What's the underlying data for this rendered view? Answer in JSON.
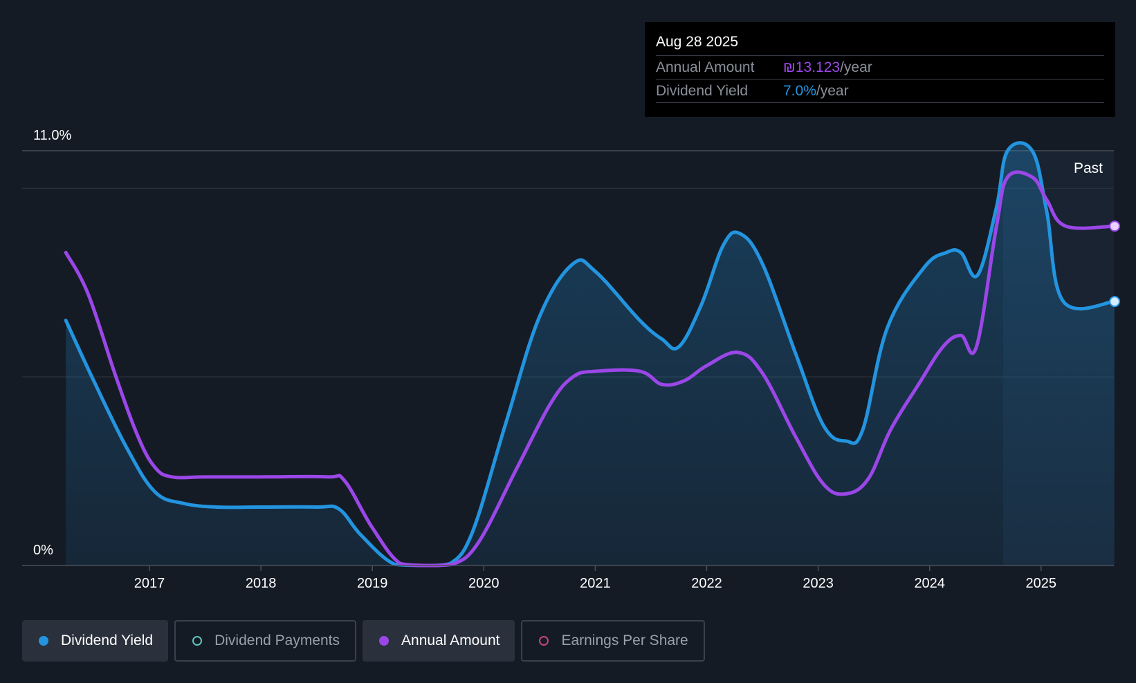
{
  "colors": {
    "dividend_yield": "#2394df",
    "annual_amount": "#9b47e8",
    "dividend_payments": "#5ec4c0",
    "earnings_per_share": "#c2477e"
  },
  "tooltip": {
    "date": "Aug 28 2025",
    "rows": [
      {
        "label": "Annual Amount",
        "value": "₪13.123",
        "unit": "/year"
      },
      {
        "label": "Dividend Yield",
        "value": "7.0%",
        "unit": "/year"
      }
    ]
  },
  "legend": [
    {
      "label": "Dividend Yield",
      "active": true,
      "icon": "filled-dot"
    },
    {
      "label": "Dividend Payments",
      "active": false,
      "icon": "hollow-dot"
    },
    {
      "label": "Annual Amount",
      "active": true,
      "icon": "filled-dot"
    },
    {
      "label": "Earnings Per Share",
      "active": false,
      "icon": "hollow-dot"
    }
  ],
  "chart_data": {
    "type": "line",
    "y_tick_labels": [
      "11.0%",
      "0%"
    ],
    "ylim": [
      0,
      11.0
    ],
    "xlim": [
      2015.85,
      2025.66
    ],
    "x_tick_labels": [
      "2017",
      "2018",
      "2019",
      "2020",
      "2021",
      "2022",
      "2023",
      "2024",
      "2025"
    ],
    "x_ticks": [
      2017,
      2018,
      2019,
      2020,
      2021,
      2022,
      2023,
      2024,
      2025
    ],
    "region_label": "Past",
    "past_start": 2024.66,
    "series": [
      {
        "name": "Dividend Yield",
        "color": "#2394df",
        "fill": true,
        "points": [
          [
            2016.25,
            6.5
          ],
          [
            2016.5,
            4.9
          ],
          [
            2016.8,
            3.1
          ],
          [
            2017.05,
            1.95
          ],
          [
            2017.3,
            1.65
          ],
          [
            2017.6,
            1.55
          ],
          [
            2018.0,
            1.55
          ],
          [
            2018.5,
            1.55
          ],
          [
            2018.7,
            1.5
          ],
          [
            2018.9,
            0.8
          ],
          [
            2019.2,
            0.03
          ],
          [
            2019.5,
            0.0
          ],
          [
            2019.7,
            0.05
          ],
          [
            2019.9,
            0.9
          ],
          [
            2020.2,
            3.8
          ],
          [
            2020.5,
            6.6
          ],
          [
            2020.8,
            8.0
          ],
          [
            2021.0,
            7.8
          ],
          [
            2021.4,
            6.5
          ],
          [
            2021.6,
            6.0
          ],
          [
            2021.75,
            5.8
          ],
          [
            2021.95,
            6.9
          ],
          [
            2022.15,
            8.5
          ],
          [
            2022.3,
            8.8
          ],
          [
            2022.5,
            8.0
          ],
          [
            2022.8,
            5.6
          ],
          [
            2023.05,
            3.7
          ],
          [
            2023.25,
            3.3
          ],
          [
            2023.4,
            3.6
          ],
          [
            2023.62,
            6.3
          ],
          [
            2023.95,
            7.9
          ],
          [
            2024.15,
            8.3
          ],
          [
            2024.28,
            8.3
          ],
          [
            2024.43,
            7.7
          ],
          [
            2024.6,
            9.5
          ],
          [
            2024.7,
            11.0
          ],
          [
            2024.92,
            11.0
          ],
          [
            2025.05,
            9.4
          ],
          [
            2025.2,
            7.0
          ],
          [
            2025.66,
            7.0
          ]
        ]
      },
      {
        "name": "Annual Amount",
        "color": "#9b47e8",
        "fill": false,
        "points": [
          [
            2016.25,
            8.3
          ],
          [
            2016.45,
            7.2
          ],
          [
            2016.7,
            5.0
          ],
          [
            2016.9,
            3.4
          ],
          [
            2017.05,
            2.6
          ],
          [
            2017.2,
            2.35
          ],
          [
            2017.5,
            2.35
          ],
          [
            2018.0,
            2.35
          ],
          [
            2018.6,
            2.35
          ],
          [
            2018.75,
            2.25
          ],
          [
            2019.0,
            1.0
          ],
          [
            2019.25,
            0.05
          ],
          [
            2019.5,
            0.0
          ],
          [
            2019.72,
            0.03
          ],
          [
            2019.95,
            0.6
          ],
          [
            2020.3,
            2.6
          ],
          [
            2020.6,
            4.3
          ],
          [
            2020.8,
            5.0
          ],
          [
            2021.0,
            5.15
          ],
          [
            2021.4,
            5.15
          ],
          [
            2021.6,
            4.8
          ],
          [
            2021.8,
            4.9
          ],
          [
            2022.0,
            5.3
          ],
          [
            2022.28,
            5.65
          ],
          [
            2022.5,
            5.1
          ],
          [
            2022.8,
            3.4
          ],
          [
            2023.05,
            2.15
          ],
          [
            2023.25,
            1.9
          ],
          [
            2023.45,
            2.3
          ],
          [
            2023.65,
            3.6
          ],
          [
            2023.9,
            4.8
          ],
          [
            2024.12,
            5.8
          ],
          [
            2024.28,
            6.1
          ],
          [
            2024.42,
            5.8
          ],
          [
            2024.6,
            9.0
          ],
          [
            2024.7,
            10.3
          ],
          [
            2024.92,
            10.3
          ],
          [
            2025.05,
            9.7
          ],
          [
            2025.22,
            9.0
          ],
          [
            2025.66,
            9.0
          ]
        ]
      }
    ]
  }
}
